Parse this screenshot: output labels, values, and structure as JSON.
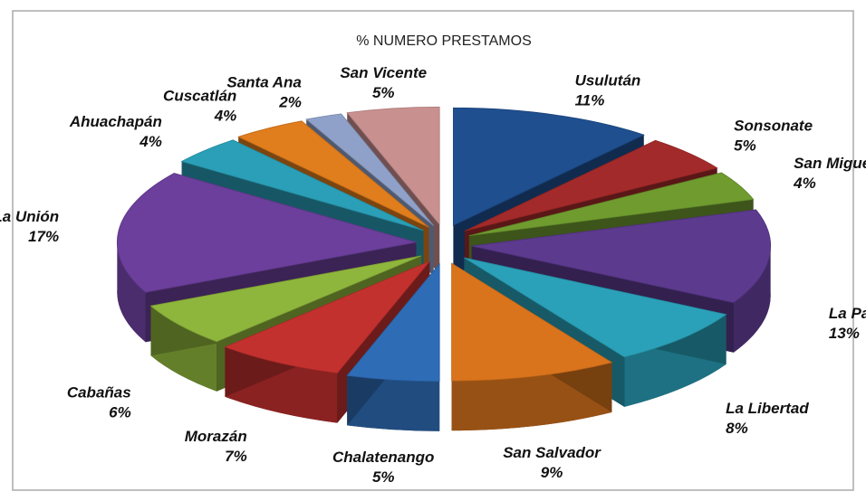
{
  "chart_data": {
    "type": "pie3d",
    "title": "% NUMERO PRESTAMOS",
    "categories": [
      "Usulután",
      "Sonsonate",
      "San Miguel",
      "La Paz",
      "La Libertad",
      "San Salvador",
      "Chalatenango",
      "Morazán",
      "Cabañas",
      "La Unión",
      "Ahuachapán",
      "Cuscatlán",
      "Santa Ana",
      "San Vicente"
    ],
    "values": [
      11,
      5,
      4,
      13,
      8,
      9,
      5,
      7,
      6,
      17,
      4,
      4,
      2,
      5
    ],
    "value_labels": [
      "11%",
      "5%",
      "4%",
      "13%",
      "8%",
      "9%",
      "5%",
      "7%",
      "6%",
      "17%",
      "4%",
      "4%",
      "2%",
      "5%"
    ],
    "colors": [
      "#1f4f8f",
      "#a32a2a",
      "#6f9b2f",
      "#5c3a8e",
      "#2aa1b9",
      "#d9741c",
      "#2f6cb6",
      "#c3312f",
      "#8fb63c",
      "#6b3f9b",
      "#2a9fb7",
      "#e07d1d",
      "#8fa1c9",
      "#c99090"
    ]
  }
}
